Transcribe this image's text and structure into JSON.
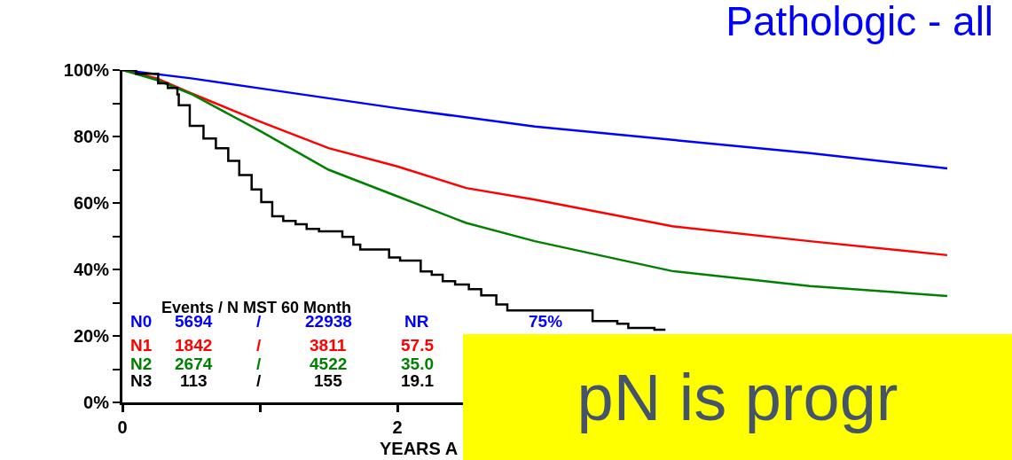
{
  "chart_data": {
    "type": "line",
    "title": "Pathologic - all",
    "xlabel": "YEARS A",
    "xlim": [
      0,
      6.4
    ],
    "xticks": [
      0,
      {
        "value": 1,
        "label": null
      },
      2
    ],
    "ylim": [
      0,
      100
    ],
    "yticks": [
      {
        "value": 0,
        "label": "0%"
      },
      {
        "value": 10,
        "label": null
      },
      {
        "value": 20,
        "label": "20%"
      },
      {
        "value": 30,
        "label": null
      },
      {
        "value": 40,
        "label": "40%"
      },
      {
        "value": 50,
        "label": null
      },
      {
        "value": 60,
        "label": "60%"
      },
      {
        "value": 70,
        "label": null
      },
      {
        "value": 80,
        "label": "80%"
      },
      {
        "value": 90,
        "label": null
      },
      {
        "value": 100,
        "label": "100%"
      }
    ],
    "grid": false,
    "legend": false,
    "marker": "none",
    "line_style": "solid",
    "series": [
      {
        "name": "N0",
        "color": "#0000ff",
        "x": [
          0,
          0.5,
          1,
          2,
          3,
          4,
          5,
          6
        ],
        "values": [
          100,
          97.5,
          94.5,
          88.5,
          83,
          79,
          75,
          70.4
        ]
      },
      {
        "name": "N1",
        "color": "#ff0000",
        "x": [
          0,
          0.25,
          0.5,
          1,
          1.5,
          2,
          2.5,
          3,
          4,
          5,
          6
        ],
        "values": [
          100,
          97.5,
          93,
          84.5,
          76.5,
          71,
          64.5,
          61,
          53,
          48.5,
          44.3
        ]
      },
      {
        "name": "N2",
        "color": "#008000",
        "x": [
          0,
          0.25,
          0.5,
          1,
          1.5,
          2,
          2.5,
          3,
          4,
          5,
          6
        ],
        "values": [
          100,
          97,
          92.8,
          81.7,
          70,
          62,
          54,
          48.5,
          39.5,
          35,
          32
        ]
      },
      {
        "name": "N3",
        "color": "#000000",
        "type": "step",
        "x": [
          0,
          0.1,
          0.26,
          0.33,
          0.4,
          0.41,
          0.49,
          0.59,
          0.68,
          0.77,
          0.85,
          0.94,
          1.01,
          1.09,
          1.17,
          1.26,
          1.34,
          1.43,
          1.6,
          1.68,
          1.73,
          1.94,
          2.02,
          2.17,
          2.25,
          2.33,
          2.42,
          2.52,
          2.61,
          2.72,
          2.8,
          3.42,
          3.6,
          3.68,
          3.87,
          3.95
        ],
        "values": [
          100,
          98.9,
          96,
          94.6,
          92.7,
          89.4,
          83.2,
          79.4,
          76.5,
          72.7,
          68.4,
          64.1,
          60.3,
          56,
          54.6,
          53.6,
          52.2,
          51.5,
          49.8,
          47.5,
          46,
          43.6,
          42.7,
          39.4,
          38.4,
          36.5,
          35.5,
          34.1,
          32.2,
          29.5,
          27.7,
          24.5,
          23.7,
          22.4,
          21.9,
          21.9
        ]
      }
    ],
    "annotations": [
      "Events / N MST 60 Month",
      "5694 / 22938 NR 75%",
      "1842 / 3811 57.5",
      "2674 / 4522 35.0",
      "113 / 155 19.1",
      "pN is progr"
    ]
  }
}
